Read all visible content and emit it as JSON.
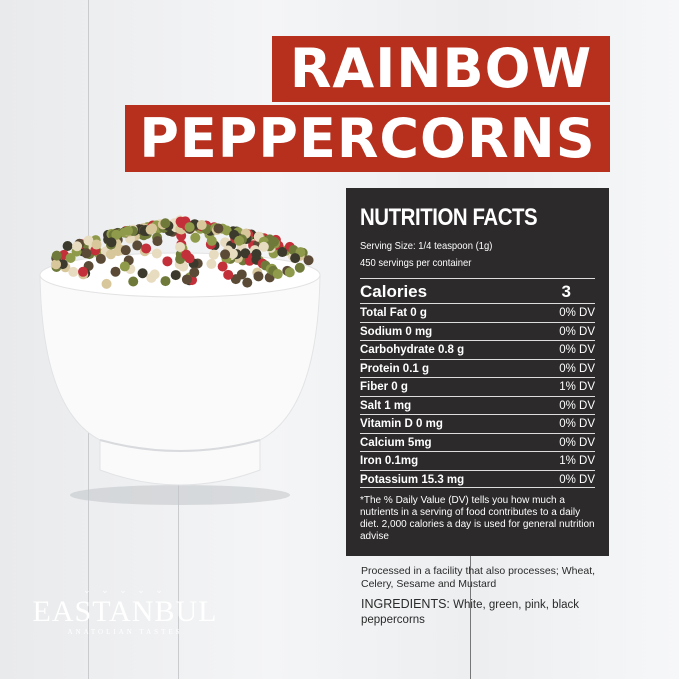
{
  "title": {
    "line1": "RAINBOW",
    "line2": "PEPPERCORNS"
  },
  "colors": {
    "banner": "#b7301e",
    "panel": "#2c2a2a"
  },
  "nutrition": {
    "heading": "NUTRITION FACTS",
    "serving_size": "Serving Size: 1/4 teaspoon (1g)",
    "servings": "450 servings per container",
    "calories_label": "Calories",
    "calories_value": "3",
    "rows": [
      {
        "label": "Total Fat  0 g",
        "dv": "0% DV"
      },
      {
        "label": "Sodium 0 mg",
        "dv": "0% DV"
      },
      {
        "label": "Carbohydrate 0.8 g",
        "dv": "0% DV"
      },
      {
        "label": "Protein 0.1 g",
        "dv": "0% DV"
      },
      {
        "label": "Fiber 0 g",
        "dv": "1% DV"
      },
      {
        "label": "Salt 1 mg",
        "dv": "0% DV"
      },
      {
        "label": "Vitamin D 0 mg",
        "dv": "0% DV"
      },
      {
        "label": "Calcium 5mg",
        "dv": "0% DV"
      },
      {
        "label": "Iron 0.1mg",
        "dv": "1% DV"
      },
      {
        "label": "Potassium 15.3 mg",
        "dv": "0% DV"
      }
    ],
    "footnote": "*The % Daily Value (DV) tells you how much a nutrients in a serving of food contributes to a daily diet. 2,000 calories  a day is used for general nutrition advise"
  },
  "allergen": "Processed in a facility that also processes; Wheat, Celery, Sesame and Mustard",
  "ingredients": {
    "label": "INGREDIENTS:",
    "text": " White, green, pink, black peppercorns"
  },
  "logo": {
    "name": "EASTANBUL",
    "tagline": "ANATOLIAN TASTES"
  }
}
